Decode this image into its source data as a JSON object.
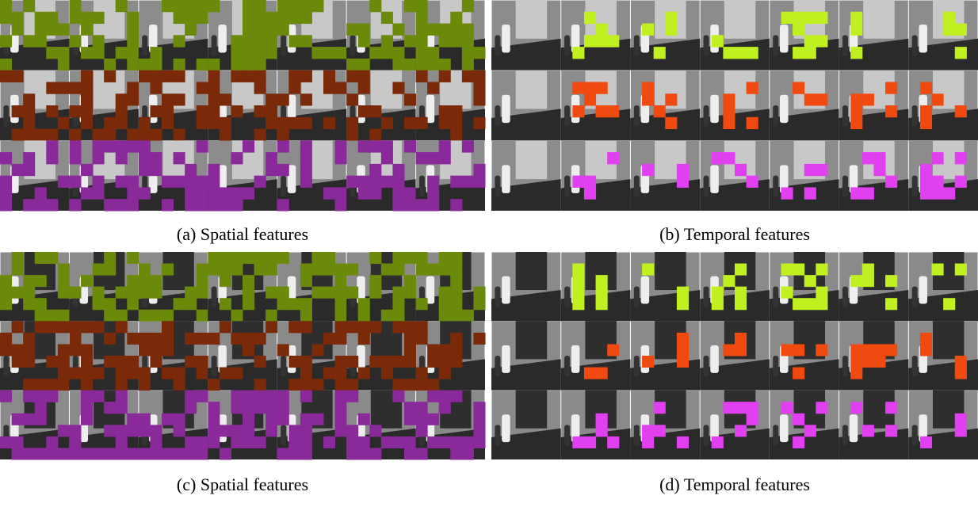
{
  "panels": [
    {
      "caption": "(a) Spatial features"
    },
    {
      "caption": "(b) Temporal features"
    },
    {
      "caption": "(c) Spatial features"
    },
    {
      "caption": "(d) Temporal features"
    }
  ]
}
